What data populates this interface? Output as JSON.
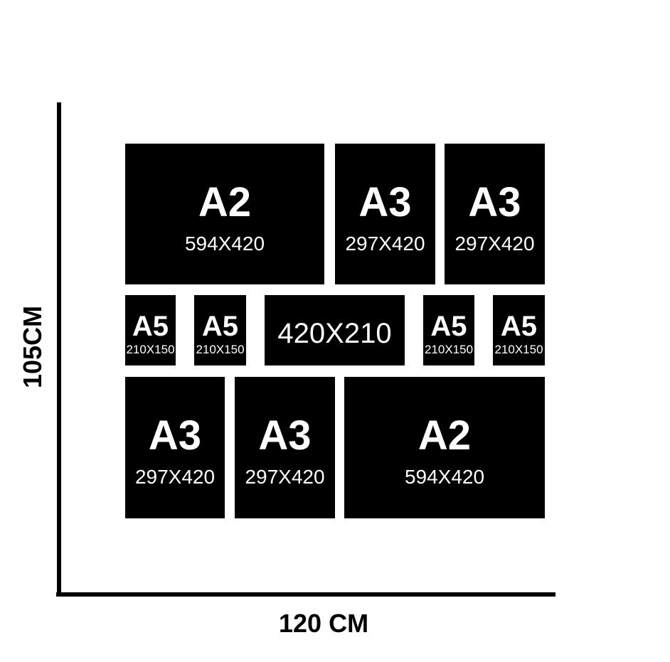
{
  "diagram": {
    "background_color": "#ffffff",
    "box_color": "#000000",
    "box_text_color": "#ffffff",
    "axis_color": "#000000"
  },
  "axes": {
    "y_label": "105CM",
    "x_label": "120 CM"
  },
  "boxes": [
    {
      "label": "A2",
      "sub": "594X420"
    },
    {
      "label": "A3",
      "sub": "297X420"
    },
    {
      "label": "A3",
      "sub": "297X420"
    },
    {
      "label": "A5",
      "sub": "210X150"
    },
    {
      "label": "A5",
      "sub": "210X150"
    },
    {
      "label": "420X210"
    },
    {
      "label": "A5",
      "sub": "210X150"
    },
    {
      "label": "A5",
      "sub": "210X150"
    },
    {
      "label": "A3",
      "sub": "297X420"
    },
    {
      "label": "A3",
      "sub": "297X420"
    },
    {
      "label": "A2",
      "sub": "594X420"
    }
  ]
}
